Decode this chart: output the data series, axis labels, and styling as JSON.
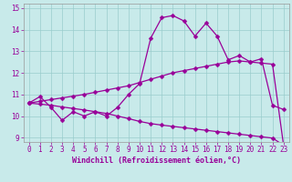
{
  "xlabel": "Windchill (Refroidissement éolien,°C)",
  "background_color": "#c8eaea",
  "grid_color": "#99cccc",
  "line_color": "#990099",
  "spine_color": "#999999",
  "xlim": [
    -0.5,
    23.5
  ],
  "ylim": [
    8.8,
    15.2
  ],
  "yticks": [
    9,
    10,
    11,
    12,
    13,
    14,
    15
  ],
  "xticks": [
    0,
    1,
    2,
    3,
    4,
    5,
    6,
    7,
    8,
    9,
    10,
    11,
    12,
    13,
    14,
    15,
    16,
    17,
    18,
    19,
    20,
    21,
    22,
    23
  ],
  "curve1_x": [
    0,
    1,
    2,
    3,
    4,
    5,
    6,
    7,
    8,
    9,
    10,
    11,
    12,
    13,
    14,
    15,
    16,
    17,
    18,
    19,
    20,
    21,
    22,
    23
  ],
  "curve1_y": [
    10.6,
    10.9,
    10.4,
    9.8,
    10.2,
    10.0,
    10.2,
    10.0,
    10.4,
    11.0,
    11.5,
    13.6,
    14.55,
    14.65,
    14.4,
    13.7,
    14.3,
    13.7,
    12.6,
    12.8,
    12.5,
    12.65,
    10.5,
    10.3
  ],
  "curve2_x": [
    0,
    1,
    2,
    3,
    4,
    5,
    6,
    7,
    8,
    9,
    10,
    11,
    12,
    13,
    14,
    15,
    16,
    17,
    18,
    19,
    20,
    21,
    22,
    23
  ],
  "curve2_y": [
    10.6,
    10.68,
    10.76,
    10.84,
    10.92,
    11.0,
    11.1,
    11.2,
    11.3,
    11.4,
    11.55,
    11.7,
    11.85,
    12.0,
    12.1,
    12.2,
    12.3,
    12.4,
    12.5,
    12.55,
    12.5,
    12.45,
    12.4,
    8.65
  ],
  "curve3_x": [
    0,
    1,
    2,
    3,
    4,
    5,
    6,
    7,
    8,
    9,
    10,
    11,
    12,
    13,
    14,
    15,
    16,
    17,
    18,
    19,
    20,
    21,
    22,
    23
  ],
  "curve3_y": [
    10.6,
    10.55,
    10.5,
    10.42,
    10.35,
    10.28,
    10.2,
    10.12,
    10.0,
    9.88,
    9.75,
    9.65,
    9.58,
    9.52,
    9.46,
    9.4,
    9.34,
    9.28,
    9.22,
    9.16,
    9.1,
    9.04,
    8.98,
    8.65
  ],
  "xlabel_fontsize": 6,
  "tick_fontsize": 5.5,
  "marker_size": 2.5,
  "linewidth": 0.9
}
